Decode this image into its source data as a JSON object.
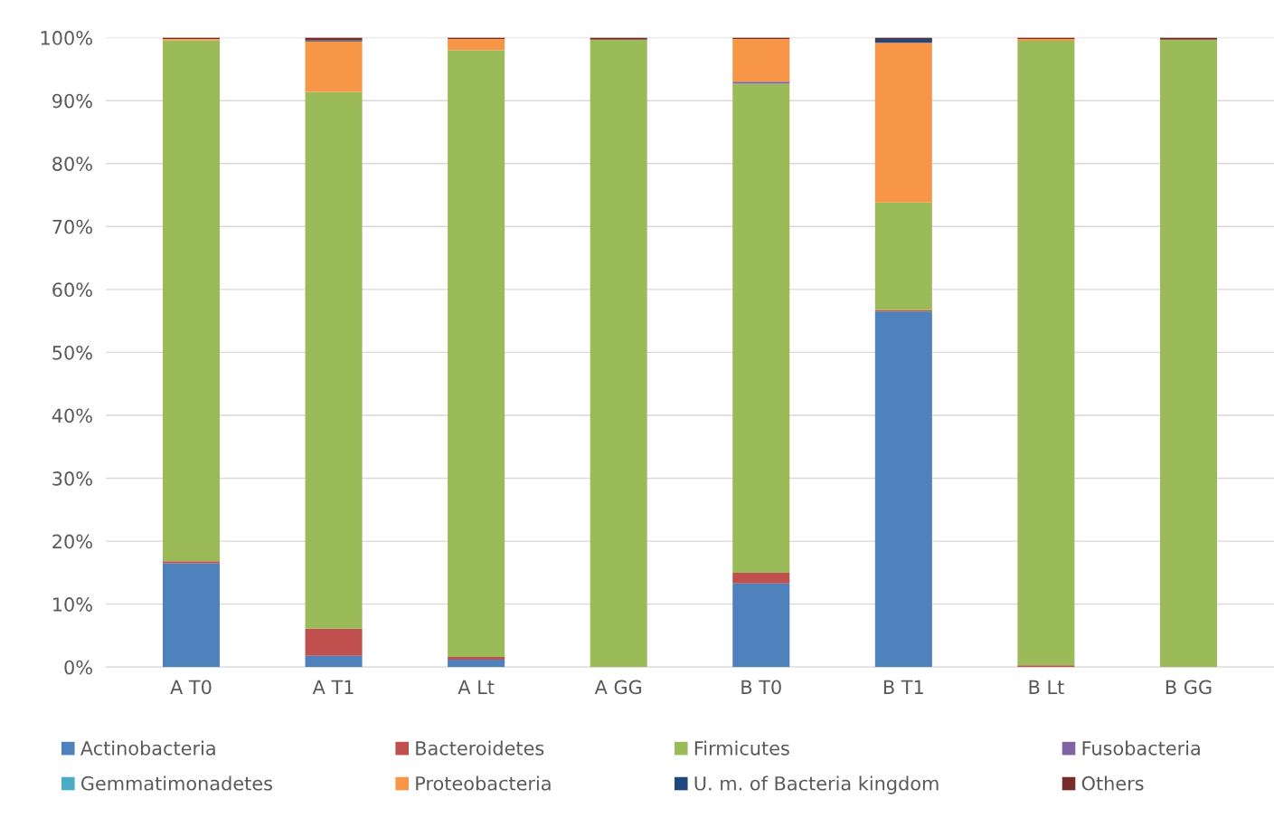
{
  "chart_data": {
    "type": "bar",
    "stacked": true,
    "categories": [
      "A T0",
      "A T1",
      "A Lt",
      "A GG",
      "B T0",
      "B T1",
      "B Lt",
      "B GG"
    ],
    "series": [
      {
        "name": "Actinobacteria",
        "color": "#4f81bd",
        "values": [
          16.5,
          1.8,
          1.2,
          null,
          13.3,
          56.5,
          null,
          null
        ]
      },
      {
        "name": "Bacteroidetes",
        "color": "#c0504d",
        "values": [
          0.3,
          4.3,
          0.4,
          null,
          1.7,
          0.2,
          0.3,
          null
        ]
      },
      {
        "name": "Firmicutes",
        "color": "#9bbb59",
        "values": [
          82.8,
          85.3,
          96.4,
          99.7,
          77.7,
          17.1,
          99.2,
          99.7
        ]
      },
      {
        "name": "Fusobacteria",
        "color": "#8064a2",
        "values": [
          null,
          null,
          null,
          null,
          0.3,
          null,
          null,
          null
        ]
      },
      {
        "name": "Gemmatimonadetes",
        "color": "#4bacc6",
        "values": [
          null,
          null,
          null,
          null,
          null,
          null,
          null,
          null
        ]
      },
      {
        "name": "Proteobacteria",
        "color": "#f79646",
        "values": [
          0.2,
          8.0,
          1.8,
          null,
          6.8,
          25.4,
          0.3,
          null
        ]
      },
      {
        "name": "U. m. of Bacteria kingdom",
        "color": "#1f497d",
        "values": [
          null,
          0.2,
          null,
          null,
          null,
          0.6,
          null,
          null
        ]
      },
      {
        "name": "Others",
        "color": "#772c2a",
        "values": [
          0.2,
          0.4,
          0.2,
          0.3,
          0.2,
          0.2,
          0.2,
          0.3
        ]
      }
    ],
    "ylim": [
      0,
      100
    ],
    "yticks": [
      {
        "value": 0,
        "label": "0%"
      },
      {
        "value": 10,
        "label": "10%"
      },
      {
        "value": 20,
        "label": "20%"
      },
      {
        "value": 30,
        "label": "30%"
      },
      {
        "value": 40,
        "label": "40%"
      },
      {
        "value": 50,
        "label": "50%"
      },
      {
        "value": 60,
        "label": "60%"
      },
      {
        "value": 70,
        "label": "70%"
      },
      {
        "value": 80,
        "label": "80%"
      },
      {
        "value": 90,
        "label": "90%"
      },
      {
        "value": 100,
        "label": "100%"
      }
    ],
    "grid": "y",
    "legend": "bottom"
  }
}
